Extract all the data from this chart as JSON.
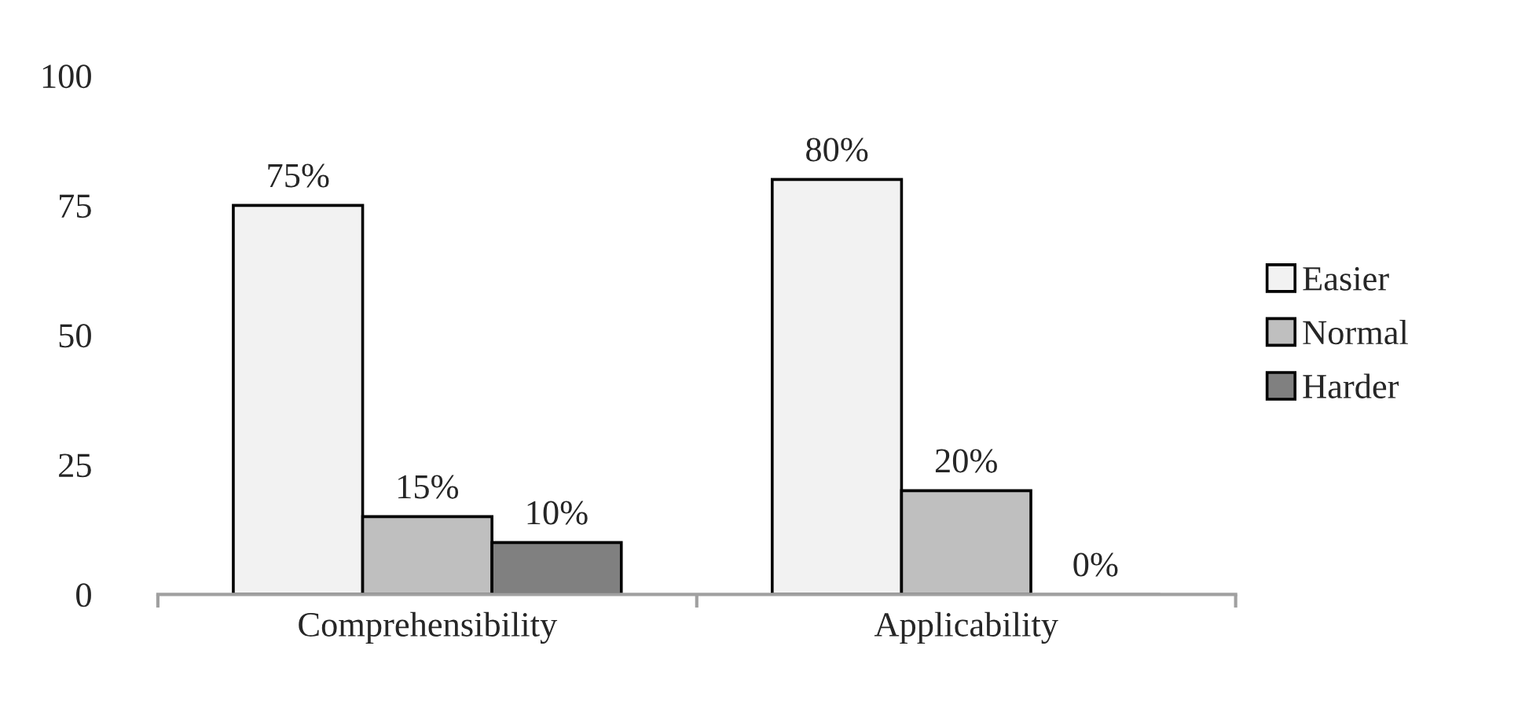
{
  "chart_data": {
    "type": "bar",
    "categories": [
      "Comprehensibility",
      "Applicability"
    ],
    "series": [
      {
        "name": "Easier",
        "color": "#f2f2f2",
        "values": [
          75,
          80
        ],
        "value_labels": [
          "75%",
          "80%"
        ]
      },
      {
        "name": "Normal",
        "color": "#bfbfbf",
        "values": [
          15,
          20
        ],
        "value_labels": [
          "15%",
          "20%"
        ]
      },
      {
        "name": "Harder",
        "color": "#808080",
        "values": [
          10,
          0
        ],
        "value_labels": [
          "10%",
          "0%"
        ]
      }
    ],
    "ylim": [
      0,
      100
    ],
    "yticks": [
      0,
      25,
      50,
      75,
      100
    ],
    "grid": false,
    "legend": "right"
  }
}
